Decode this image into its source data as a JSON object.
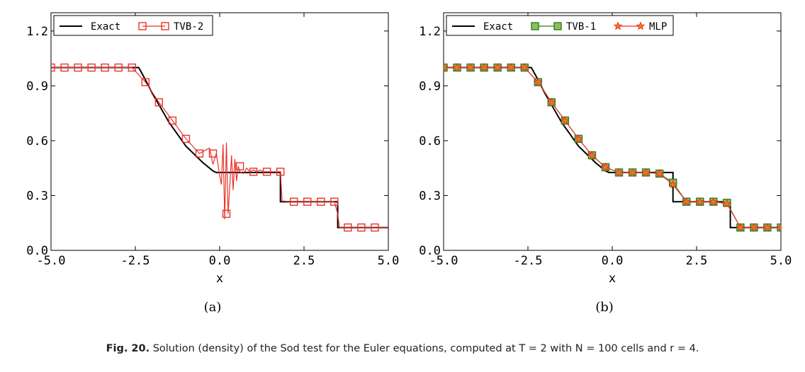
{
  "caption": {
    "label": "Fig. 20.",
    "text": "Solution (density) of the Sod test for the Euler equations, computed at T = 2 with N = 100 cells and r = 4."
  },
  "colors": {
    "exact": "#000000",
    "tvb2": "#e8332a",
    "tvb1": "#2e7d1f",
    "mlp": "#e8332a",
    "mlp_fill": "#f07a1a"
  },
  "chart_data": [
    {
      "panel": "(a)",
      "type": "line",
      "xlabel": "x",
      "ylabel": "",
      "xlim": [
        -5.0,
        5.0
      ],
      "ylim": [
        0.0,
        1.3
      ],
      "xticks": [
        "-5.0",
        "-2.5",
        "0.0",
        "2.5",
        "5.0"
      ],
      "yticks": [
        "0.0",
        "0.3",
        "0.6",
        "0.9",
        "1.2"
      ],
      "legend_position": "top-left",
      "series": [
        {
          "name": "Exact",
          "color": "#000000",
          "x": [
            -5.0,
            -2.4,
            -2.25,
            -2.0,
            -1.5,
            -1.0,
            -0.5,
            -0.2,
            -0.1,
            1.8,
            1.8,
            3.5,
            3.5,
            5.0
          ],
          "y": [
            1.0,
            1.0,
            0.95,
            0.86,
            0.7,
            0.57,
            0.48,
            0.435,
            0.426,
            0.426,
            0.266,
            0.266,
            0.125,
            0.125
          ]
        },
        {
          "name": "TVB-2",
          "color": "#e8332a",
          "marker": "square",
          "x": [
            -5.0,
            -4.6,
            -4.2,
            -3.8,
            -3.4,
            -3.0,
            -2.6,
            -2.2,
            -1.8,
            -1.4,
            -1.0,
            -0.6,
            -0.3,
            -0.2,
            -0.1,
            0.0,
            0.05,
            0.1,
            0.15,
            0.2,
            0.25,
            0.3,
            0.35,
            0.4,
            0.45,
            0.5,
            0.55,
            0.6,
            0.7,
            0.8,
            0.9,
            1.0,
            1.1,
            1.2,
            1.3,
            1.4,
            1.6,
            1.8,
            1.85,
            2.2,
            2.6,
            3.0,
            3.4,
            3.5,
            3.55,
            3.8,
            4.2,
            4.6,
            5.0
          ],
          "y": [
            1.0,
            1.0,
            1.0,
            1.0,
            1.0,
            1.0,
            1.0,
            0.92,
            0.81,
            0.71,
            0.61,
            0.53,
            0.56,
            0.47,
            0.53,
            0.41,
            0.36,
            0.58,
            0.17,
            0.59,
            0.2,
            0.35,
            0.52,
            0.33,
            0.5,
            0.38,
            0.46,
            0.43,
            0.42,
            0.45,
            0.43,
            0.44,
            0.43,
            0.44,
            0.43,
            0.43,
            0.43,
            0.43,
            0.27,
            0.266,
            0.266,
            0.266,
            0.266,
            0.2,
            0.125,
            0.125,
            0.125,
            0.125,
            0.125
          ],
          "marker_x": [
            -5.0,
            -4.6,
            -4.2,
            -3.8,
            -3.4,
            -3.0,
            -2.6,
            -2.2,
            -1.8,
            -1.4,
            -1.0,
            -0.6,
            -0.2,
            0.2,
            0.6,
            1.0,
            1.4,
            1.8,
            2.2,
            2.6,
            3.0,
            3.4,
            3.8,
            4.2,
            4.6
          ],
          "marker_y": [
            1.0,
            1.0,
            1.0,
            1.0,
            1.0,
            1.0,
            1.0,
            0.92,
            0.81,
            0.71,
            0.61,
            0.53,
            0.53,
            0.2,
            0.46,
            0.43,
            0.43,
            0.43,
            0.266,
            0.266,
            0.266,
            0.266,
            0.125,
            0.125,
            0.125
          ]
        }
      ]
    },
    {
      "panel": "(b)",
      "type": "line",
      "xlabel": "x",
      "ylabel": "",
      "xlim": [
        -5.0,
        5.0
      ],
      "ylim": [
        0.0,
        1.3
      ],
      "xticks": [
        "-5.0",
        "-2.5",
        "0.0",
        "2.5",
        "5.0"
      ],
      "yticks": [
        "0.0",
        "0.3",
        "0.6",
        "0.9",
        "1.2"
      ],
      "legend_position": "top-left",
      "series": [
        {
          "name": "Exact",
          "color": "#000000",
          "x": [
            -5.0,
            -2.4,
            -2.25,
            -2.0,
            -1.5,
            -1.0,
            -0.5,
            -0.2,
            -0.1,
            1.8,
            1.8,
            3.5,
            3.5,
            5.0
          ],
          "y": [
            1.0,
            1.0,
            0.95,
            0.86,
            0.7,
            0.57,
            0.48,
            0.435,
            0.426,
            0.426,
            0.266,
            0.266,
            0.125,
            0.125
          ]
        },
        {
          "name": "TVB-1",
          "color": "#2e7d1f",
          "marker": "square",
          "x": [
            -5.0,
            -4.6,
            -4.2,
            -3.8,
            -3.4,
            -3.0,
            -2.6,
            -2.2,
            -1.8,
            -1.4,
            -1.0,
            -0.6,
            -0.2,
            0.2,
            0.6,
            1.0,
            1.4,
            1.8,
            2.2,
            2.6,
            3.0,
            3.4,
            3.8,
            4.2,
            4.6,
            5.0
          ],
          "y": [
            1.0,
            1.0,
            1.0,
            1.0,
            1.0,
            1.0,
            1.0,
            0.92,
            0.81,
            0.71,
            0.61,
            0.52,
            0.455,
            0.426,
            0.426,
            0.426,
            0.42,
            0.37,
            0.266,
            0.266,
            0.266,
            0.26,
            0.125,
            0.125,
            0.125,
            0.125
          ]
        },
        {
          "name": "MLP",
          "color": "#e8332a",
          "marker": "star",
          "x": [
            -5.0,
            -4.6,
            -4.2,
            -3.8,
            -3.4,
            -3.0,
            -2.6,
            -2.2,
            -1.8,
            -1.4,
            -1.0,
            -0.6,
            -0.2,
            0.2,
            0.6,
            1.0,
            1.4,
            1.8,
            2.2,
            2.6,
            3.0,
            3.4,
            3.8,
            4.2,
            4.6,
            5.0
          ],
          "y": [
            1.0,
            1.0,
            1.0,
            1.0,
            1.0,
            1.0,
            1.0,
            0.92,
            0.81,
            0.71,
            0.61,
            0.52,
            0.455,
            0.426,
            0.426,
            0.426,
            0.42,
            0.36,
            0.266,
            0.266,
            0.266,
            0.255,
            0.125,
            0.125,
            0.125,
            0.125
          ]
        }
      ]
    }
  ]
}
